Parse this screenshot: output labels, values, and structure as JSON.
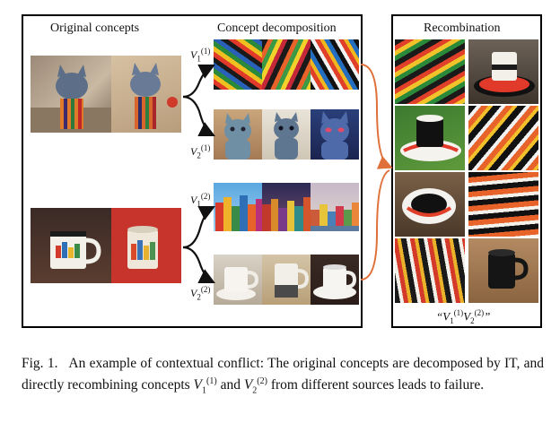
{
  "panels": {
    "original_title": "Original concepts",
    "decomposition_title": "Concept decomposition",
    "recombination_title": "Recombination"
  },
  "labels": {
    "v_letter": "V",
    "v1_sub": "1",
    "v2_sub": "2",
    "sup1": "(1)",
    "sup2": "(2)",
    "quote_open": "“",
    "quote_close": "”"
  },
  "caption": {
    "fig": "Fig. 1.",
    "text_a": "An example of contextual conflict: The original concepts are decomposed by IT, and directly recombining concepts ",
    "text_and": " and ",
    "text_b": " from different sources leads to failure."
  },
  "colors": {
    "arrow_black": "#111111",
    "arrow_orange": "#e0703a"
  }
}
